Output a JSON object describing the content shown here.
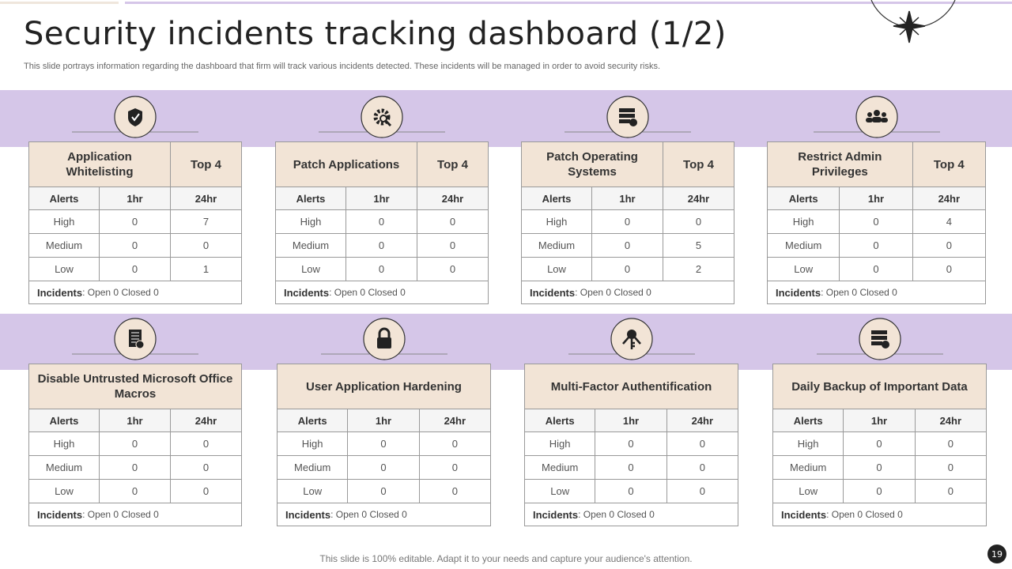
{
  "header": {
    "title": "Security incidents tracking dashboard (1/2)",
    "subtitle": "This slide portrays information regarding the dashboard that firm will track various incidents detected. These incidents will be managed in order to avoid security risks."
  },
  "panels": [
    {
      "title": "Application Whitelisting",
      "top": "Top 4",
      "columns": [
        "Alerts",
        "1hr",
        "24hr"
      ],
      "rows": [
        [
          "High",
          0,
          7
        ],
        [
          "Medium",
          0,
          0
        ],
        [
          "Low",
          0,
          1
        ]
      ],
      "incidents_label": "Incidents",
      "incidents_text": ": Open 0 Closed 0"
    },
    {
      "title": "Patch Applications",
      "top": "Top 4",
      "columns": [
        "Alerts",
        "1hr",
        "24hr"
      ],
      "rows": [
        [
          "High",
          0,
          0
        ],
        [
          "Medium",
          0,
          0
        ],
        [
          "Low",
          0,
          0
        ]
      ],
      "incidents_label": "Incidents",
      "incidents_text": ": Open 0 Closed 0"
    },
    {
      "title": "Patch Operating Systems",
      "top": "Top 4",
      "columns": [
        "Alerts",
        "1hr",
        "24hr"
      ],
      "rows": [
        [
          "High",
          0,
          0
        ],
        [
          "Medium",
          0,
          5
        ],
        [
          "Low",
          0,
          2
        ]
      ],
      "incidents_label": "Incidents",
      "incidents_text": ": Open 0 Closed 0"
    },
    {
      "title": "Restrict Admin Privileges",
      "top": "Top 4",
      "columns": [
        "Alerts",
        "1hr",
        "24hr"
      ],
      "rows": [
        [
          "High",
          0,
          4
        ],
        [
          "Medium",
          0,
          0
        ],
        [
          "Low",
          0,
          0
        ]
      ],
      "incidents_label": "Incidents",
      "incidents_text": ": Open 0 Closed 0"
    },
    {
      "title": "Disable Untrusted Microsoft Office Macros",
      "columns": [
        "Alerts",
        "1hr",
        "24hr"
      ],
      "rows": [
        [
          "High",
          0,
          0
        ],
        [
          "Medium",
          0,
          0
        ],
        [
          "Low",
          0,
          0
        ]
      ],
      "incidents_label": "Incidents",
      "incidents_text": ": Open 0 Closed 0"
    },
    {
      "title": "User Application Hardening",
      "columns": [
        "Alerts",
        "1hr",
        "24hr"
      ],
      "rows": [
        [
          "High",
          0,
          0
        ],
        [
          "Medium",
          0,
          0
        ],
        [
          "Low",
          0,
          0
        ]
      ],
      "incidents_label": "Incidents",
      "incidents_text": ": Open 0 Closed 0"
    },
    {
      "title": "Multi-Factor Authentification",
      "columns": [
        "Alerts",
        "1hr",
        "24hr"
      ],
      "rows": [
        [
          "High",
          0,
          0
        ],
        [
          "Medium",
          0,
          0
        ],
        [
          "Low",
          0,
          0
        ]
      ],
      "incidents_label": "Incidents",
      "incidents_text": ": Open 0 Closed 0"
    },
    {
      "title": "Daily Backup of Important Data",
      "columns": [
        "Alerts",
        "1hr",
        "24hr"
      ],
      "rows": [
        [
          "High",
          0,
          0
        ],
        [
          "Medium",
          0,
          0
        ],
        [
          "Low",
          0,
          0
        ]
      ],
      "incidents_label": "Incidents",
      "incidents_text": ": Open 0 Closed 0"
    }
  ],
  "footer": {
    "note": "This slide is 100% editable. Adapt it to your needs and capture your audience's attention.",
    "page": "19"
  }
}
